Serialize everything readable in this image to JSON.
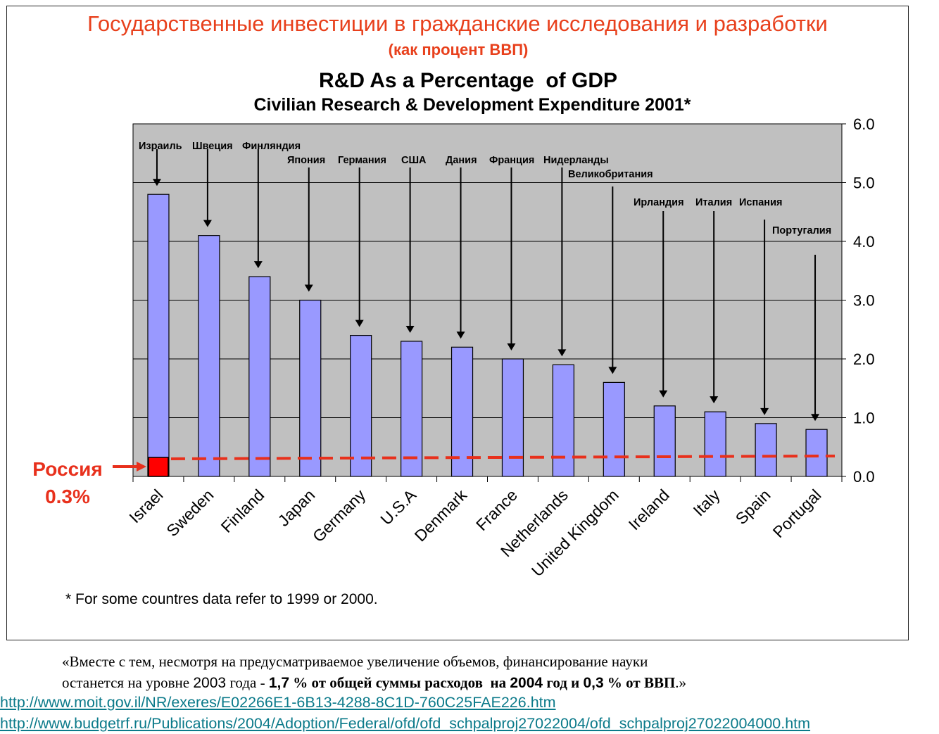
{
  "header": {
    "ru_title": "Государственные инвестиции в гражданские исследования и разработки",
    "ru_subtitle": "(как процент ВВП)"
  },
  "chart_data": {
    "type": "bar",
    "title": "R&D As a Percentage  of GDP",
    "subtitle": "Civilian Research & Development Expenditure 2001*",
    "categories": [
      "Israel",
      "Sweden",
      "Finland",
      "Japan",
      "Germany",
      "U.S.A",
      "Denmark",
      "France",
      "Netherlands",
      "United Kingdom",
      "Ireland",
      "Italy",
      "Spain",
      "Portugal"
    ],
    "values": [
      4.8,
      4.1,
      3.4,
      3.0,
      2.4,
      2.3,
      2.2,
      2.0,
      1.9,
      1.6,
      1.2,
      1.1,
      0.9,
      0.8
    ],
    "ylim": [
      0,
      6
    ],
    "yticks": [
      "0.0",
      "1.0",
      "2.0",
      "3.0",
      "4.0",
      "5.0",
      "6.0"
    ],
    "y_axis_side": "right",
    "annotations": [
      "Израиль",
      "Швеция",
      "Финляндия",
      "Япония",
      "Германия",
      "США",
      "Дания",
      "Франция",
      "Нидерланды",
      "Великобритания",
      "Ирландия",
      "Италия",
      "Испания",
      "Португалия"
    ],
    "reference": {
      "label": "Россия",
      "value_label": "0.3%",
      "value": 0.3
    },
    "colors": {
      "bar": "#9999ff",
      "plot_bg": "#c0c0c0",
      "reference": "#e8301c",
      "russia_marker": "#ff0000"
    },
    "footnote": "* For some countres data refer to 1999 or 2000."
  },
  "quote": {
    "open": "«",
    "line1": "Вместе с тем, несмотря на предусматриваемое увеличение объемов, финансирование науки",
    "line2_a": "останется на уровне ",
    "line2_year": "2003",
    "line2_b": " года - ",
    "line2_c": "1,7",
    "line2_d": " % от общей суммы расходов  на ",
    "line2_e": "2004",
    "line2_f": " год и ",
    "line2_g": "0,3",
    "line2_h": " % от ВВП",
    "close": ".»"
  },
  "links": [
    "http://www.moit.gov.il/NR/exeres/E02266E1-6B13-4288-8C1D-760C25FAE226.htm",
    "http://www.budgetrf.ru/Publications/2004/Adoption/Federal/ofd/ofd_schpalproj27022004/ofd_schpalproj27022004000.htm"
  ]
}
